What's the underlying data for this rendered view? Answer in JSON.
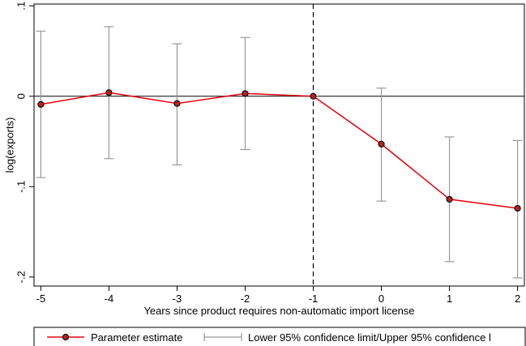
{
  "chart_data": {
    "type": "line",
    "title": "",
    "xlabel": "Years since product requires non-automatic import license",
    "ylabel": "log(exports)",
    "x": [
      -5,
      -4,
      -3,
      -2,
      -1,
      0,
      1,
      2
    ],
    "x_ticks": [
      "-5",
      "-4",
      "-3",
      "-2",
      "-1",
      "0",
      "1",
      "2"
    ],
    "y_ticks": [
      {
        "value": 0.1,
        "label": ".1"
      },
      {
        "value": 0.0,
        "label": "0"
      },
      {
        "value": -0.1,
        "label": "-.1"
      },
      {
        "value": -0.2,
        "label": "-.2"
      }
    ],
    "xlim": [
      -5.1,
      2.1
    ],
    "ylim": [
      -0.21,
      0.102
    ],
    "grid": false,
    "reference_lines": {
      "horizontal_y": 0,
      "vertical_dashed_x": -1
    },
    "series": [
      {
        "name": "Parameter estimate",
        "values": [
          -0.009,
          0.004,
          -0.008,
          0.003,
          0.0,
          -0.053,
          -0.114,
          -0.124
        ],
        "color": "#e8000b",
        "marker_fill": "#b22222"
      },
      {
        "name": "Lower 95% confidence limit/Upper 95% confidence l",
        "type": "errorbar",
        "lower": [
          -0.09,
          -0.069,
          -0.076,
          -0.059,
          0.0,
          -0.116,
          -0.183,
          -0.201
        ],
        "upper": [
          0.072,
          0.077,
          0.058,
          0.065,
          0.0,
          0.009,
          -0.045,
          -0.049
        ],
        "color": "#999999"
      }
    ],
    "legend": {
      "position": "bottom",
      "entries": [
        "Parameter estimate",
        "Lower 95% confidence limit/Upper 95% confidence l"
      ]
    }
  }
}
